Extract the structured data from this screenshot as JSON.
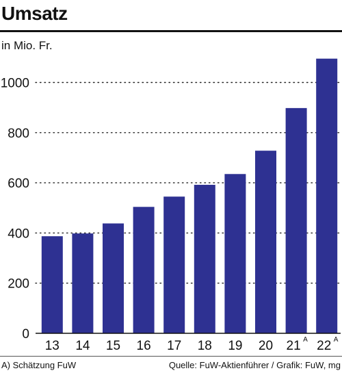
{
  "title": "Umsatz",
  "unit": "in Mio. Fr.",
  "footnote": "A) Schätzung FuW",
  "source": "Quelle: FuW-Aktienführer / Grafik: FuW, mg",
  "colors": {
    "bar": "#2e3192",
    "grid": "#222222",
    "axis": "#111111"
  },
  "chart_data": {
    "type": "bar",
    "title": "Umsatz",
    "ylabel": "in Mio. Fr.",
    "xlabel": "",
    "categories": [
      "13",
      "14",
      "15",
      "16",
      "17",
      "18",
      "19",
      "20",
      "21",
      "22"
    ],
    "category_notes": [
      "",
      "",
      "",
      "",
      "",
      "",
      "",
      "",
      "A",
      "A"
    ],
    "values": [
      387,
      398,
      438,
      504,
      545,
      592,
      635,
      728,
      898,
      1095
    ],
    "ylim": [
      0,
      1100
    ],
    "yticks": [
      0,
      200,
      400,
      600,
      800,
      1000
    ],
    "grid": "horizontal dotted",
    "legend": "none"
  }
}
